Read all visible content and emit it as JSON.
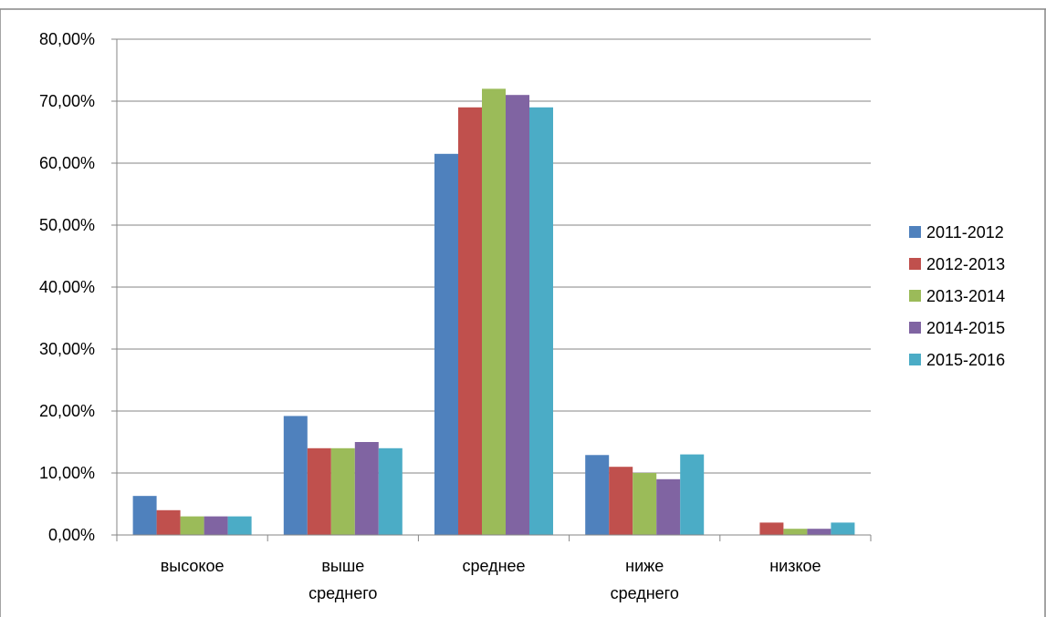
{
  "chart_data": {
    "type": "bar",
    "categories": [
      "высокое",
      "выше среднего",
      "среднее",
      "ниже среднего",
      "низкое"
    ],
    "category_lines": [
      [
        "высокое"
      ],
      [
        "выше",
        "среднего"
      ],
      [
        "среднее"
      ],
      [
        "ниже",
        "среднего"
      ],
      [
        "низкое"
      ]
    ],
    "series": [
      {
        "name": "2011-2012",
        "color": "#4F81BD",
        "values": [
          6.3,
          19.2,
          61.5,
          12.9,
          0.0
        ]
      },
      {
        "name": "2012-2013",
        "color": "#C0504D",
        "values": [
          4.0,
          14.0,
          69.0,
          11.0,
          2.0
        ]
      },
      {
        "name": "2013-2014",
        "color": "#9BBB59",
        "values": [
          3.0,
          14.0,
          72.0,
          10.0,
          1.0
        ]
      },
      {
        "name": "2014-2015",
        "color": "#8064A2",
        "values": [
          3.0,
          15.0,
          71.0,
          9.0,
          1.0
        ]
      },
      {
        "name": "2015-2016",
        "color": "#4BACC6",
        "values": [
          3.0,
          14.0,
          69.0,
          13.0,
          2.0
        ]
      }
    ],
    "y_ticks": [
      "0,00%",
      "10,00%",
      "20,00%",
      "30,00%",
      "40,00%",
      "50,00%",
      "60,00%",
      "70,00%",
      "80,00%"
    ],
    "ylim": [
      0,
      80
    ],
    "y_unit": "percent",
    "grid": true,
    "legend_position": "right",
    "title": "",
    "xlabel": "",
    "ylabel": ""
  }
}
